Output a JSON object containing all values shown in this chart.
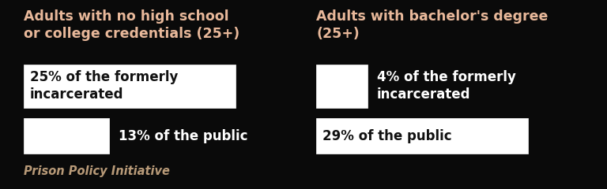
{
  "background_color": "#0a0a0a",
  "title_color": "#e8b89a",
  "box_facecolor": "#ffffff",
  "text_color_dark": "#111111",
  "watermark_color": "#b89a78",
  "left_title": "Adults with no high school\nor college credentials (25+)",
  "left_row1_text": "25% of the formerly\nincarcerated",
  "left_row2_text": "13% of the public",
  "right_title": "Adults with bachelor's degree\n(25+)",
  "right_row1_text": "4% of the formerly\nincarcerated",
  "right_row2_text": "29% of the public",
  "watermark": "Prison Policy Initiative",
  "title_fontsize": 12.5,
  "body_fontsize": 12,
  "watermark_fontsize": 10.5,
  "fig_w": 7.68,
  "fig_h": 2.4,
  "dpi": 100
}
